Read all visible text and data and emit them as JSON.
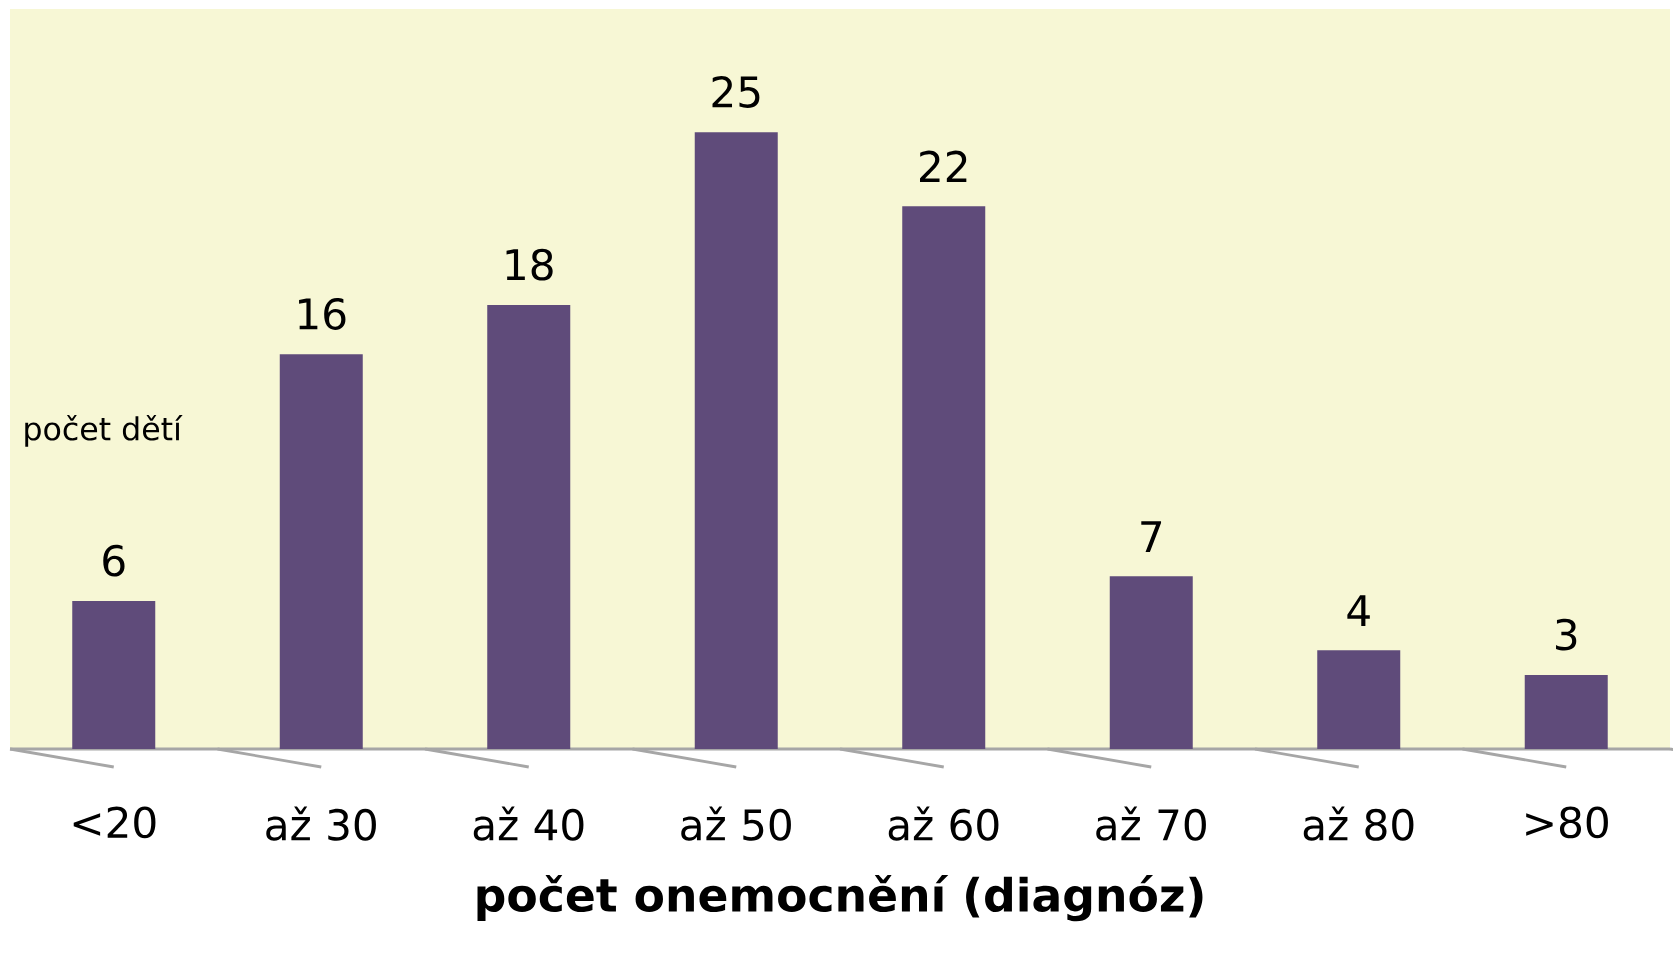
{
  "chart_data": {
    "type": "bar",
    "xlabel": "počet onemocnění  (diagnóz)",
    "ylabel": "počet dětí",
    "categories": [
      "<20",
      "až 30",
      "až 40",
      "až 50",
      "až 60",
      "až 70",
      "až 80",
      ">80"
    ],
    "values": [
      6,
      16,
      18,
      25,
      22,
      7,
      4,
      3
    ],
    "color": "#5f4b7a",
    "data_labels": true
  }
}
